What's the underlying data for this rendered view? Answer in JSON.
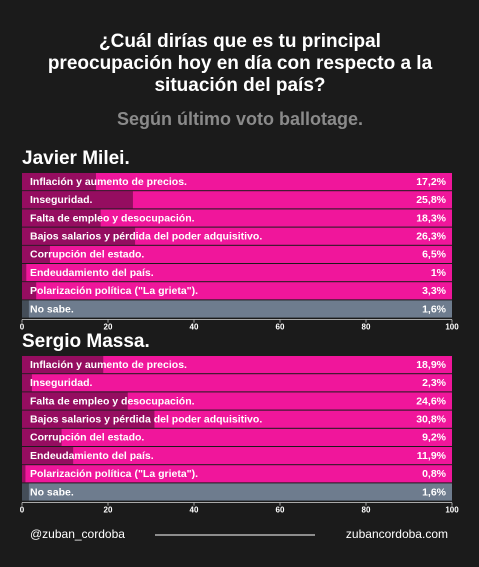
{
  "header": {
    "title": [
      "¿Cuál dirías que es tu principal",
      "preocupación hoy en día con respecto a la",
      "situación del país?"
    ],
    "subtitle": "Según último voto ballotage."
  },
  "chart_data": [
    {
      "type": "bar",
      "orientation": "horizontal",
      "title": "Javier Milei.",
      "categories": [
        "Inflación y aumento de precios.",
        "Inseguridad.",
        "Falta de empleo y desocupación.",
        "Bajos salarios y pérdida del poder adquisitivo.",
        "Corrupción del estado.",
        "Endeudamiento del país.",
        "Polarización política (\"La grieta\").",
        "No sabe."
      ],
      "values": [
        17.2,
        25.8,
        18.3,
        26.3,
        6.5,
        1,
        3.3,
        1.6
      ],
      "value_labels": [
        "17,2%",
        "25,8%",
        "18,3%",
        "26,3%",
        "6,5%",
        "1%",
        "3,3%",
        "1,6%"
      ],
      "color": "#000000",
      "xlim": [
        0,
        100
      ],
      "xticks": [
        0,
        20,
        40,
        60,
        80,
        100
      ]
    },
    {
      "type": "bar",
      "orientation": "horizontal",
      "title": "Sergio Massa.",
      "categories": [
        "Inflación y aumento de precios.",
        "Inseguridad.",
        "Falta de empleo y desocupación.",
        "Bajos salarios y pérdida del poder adquisitivo.",
        "Corrupción del estado.",
        "Endeudamiento del país.",
        "Polarización política (\"La grieta\").",
        "No sabe."
      ],
      "values": [
        18.9,
        2.3,
        24.6,
        30.8,
        9.2,
        11.9,
        0.8,
        1.6
      ],
      "value_labels": [
        "18,9%",
        "2,3%",
        "24,6%",
        "30,8%",
        "9,2%",
        "11,9%",
        "0,8%",
        "1,6%"
      ],
      "color": "#000000",
      "xlim": [
        0,
        100
      ],
      "xticks": [
        0,
        20,
        40,
        60,
        80,
        100
      ]
    }
  ],
  "footer": {
    "left": "@zuban_cordoba",
    "right": "zubancordoba.com"
  }
}
